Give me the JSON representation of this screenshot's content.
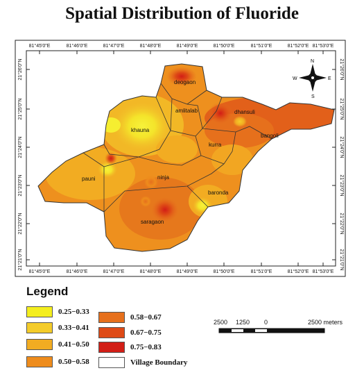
{
  "title": "Spatial Distribution of Fluoride",
  "axes": {
    "top_ticks": [
      "81°45'0\"E",
      "81°46'0\"E",
      "81°47'0\"E",
      "81°48'0\"E",
      "81°49'0\"E",
      "81°50'0\"E",
      "81°51'0\"E",
      "81°52'0\"E",
      "81°53'0\"E"
    ],
    "bottom_ticks": [
      "81°45'0\"E",
      "81°46'0\"E",
      "81°47'0\"E",
      "81°48'0\"E",
      "81°49'0\"E",
      "81°50'0\"E",
      "81°51'0\"E",
      "81°52'0\"E",
      "81°53'0\"E"
    ],
    "left_ticks": [
      "21°26'0\"N",
      "21°25'0\"N",
      "21°24'0\"N",
      "21°23'0\"N",
      "21°22'0\"N",
      "21°21'0\"N"
    ],
    "right_ticks": [
      "21°26'0\"N",
      "21°25'0\"N",
      "21°24'0\"N",
      "21°23'0\"N",
      "21°22'0\"N",
      "21°21'0\"N"
    ]
  },
  "villages": [
    "deogaon",
    "amlitalab",
    "dhansuli",
    "khauna",
    "kurra",
    "bangoli",
    "pauni",
    "ninja",
    "baronda",
    "saragaon"
  ],
  "compass": {
    "n": "N",
    "s": "S",
    "e": "E",
    "w": "W"
  },
  "legend": {
    "title": "Legend",
    "items": [
      {
        "label": "0.25−0.33",
        "color": "#f4ee1e"
      },
      {
        "label": "0.33−0.41",
        "color": "#f4cc2a"
      },
      {
        "label": "0.41−0.50",
        "color": "#f2ac22"
      },
      {
        "label": "0.50−0.58",
        "color": "#ee8c1c"
      },
      {
        "label": "0.58−0.67",
        "color": "#e6701c"
      },
      {
        "label": "0.67−0.75",
        "color": "#de4a16"
      },
      {
        "label": "0.75−0.83",
        "color": "#d21e16"
      },
      {
        "label": "Village Boundary",
        "color": "#ffffff"
      }
    ]
  },
  "scalebar": {
    "labels": [
      "2500",
      "1250",
      "0",
      "2500 meters"
    ]
  }
}
